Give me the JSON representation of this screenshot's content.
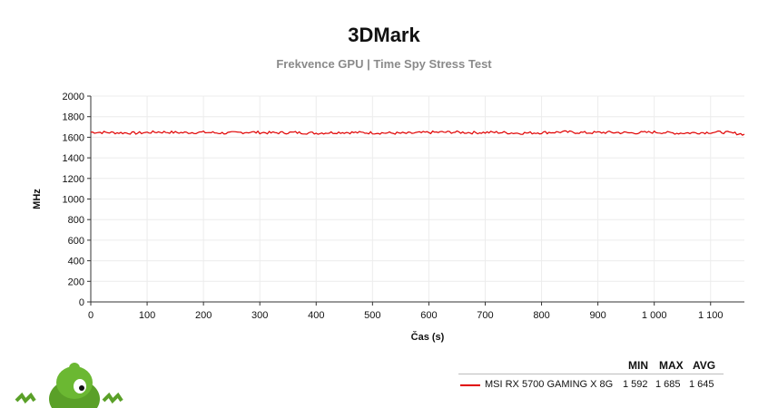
{
  "header": {
    "title": "3DMark",
    "subtitle": "Frekvence GPU | Time Spy Stress Test"
  },
  "chart_data": {
    "type": "line",
    "title": "3DMark",
    "subtitle": "Frekvence GPU | Time Spy Stress Test",
    "xlabel": "Čas (s)",
    "ylabel": "MHz",
    "xlim": [
      0,
      1160
    ],
    "ylim": [
      0,
      2000
    ],
    "x_ticks": [
      0,
      100,
      200,
      300,
      400,
      500,
      600,
      700,
      800,
      900,
      1000,
      1100
    ],
    "x_tick_labels": [
      "0",
      "100",
      "200",
      "300",
      "400",
      "500",
      "600",
      "700",
      "800",
      "900",
      "1 000",
      "1 100"
    ],
    "y_ticks": [
      0,
      200,
      400,
      600,
      800,
      1000,
      1200,
      1400,
      1600,
      1800,
      2000
    ],
    "y_tick_labels": [
      "0",
      "200",
      "400",
      "600",
      "800",
      "1000",
      "1200",
      "1400",
      "1600",
      "1800",
      "2000"
    ],
    "grid": true,
    "series": [
      {
        "name": "MSI RX 5700 GAMING X 8G",
        "color": "#e00000",
        "x": [
          0,
          40,
          80,
          120,
          160,
          200,
          240,
          280,
          320,
          360,
          400,
          440,
          480,
          520,
          560,
          600,
          640,
          680,
          720,
          760,
          800,
          840,
          880,
          920,
          960,
          1000,
          1040,
          1080,
          1120,
          1160
        ],
        "y": [
          1650,
          1645,
          1640,
          1652,
          1645,
          1648,
          1640,
          1650,
          1643,
          1646,
          1640,
          1648,
          1645,
          1642,
          1638,
          1647,
          1650,
          1645,
          1648,
          1640,
          1645,
          1652,
          1644,
          1648,
          1642,
          1650,
          1640,
          1645,
          1650,
          1630
        ],
        "min": 1592,
        "max": 1685,
        "avg": 1645
      }
    ]
  },
  "stats": {
    "headers": [
      "MIN",
      "MAX",
      "AVG"
    ],
    "rows": [
      {
        "name": "MSI RX 5700 GAMING X 8G",
        "min": "1 592",
        "max": "1 685",
        "avg": "1 645"
      }
    ]
  }
}
